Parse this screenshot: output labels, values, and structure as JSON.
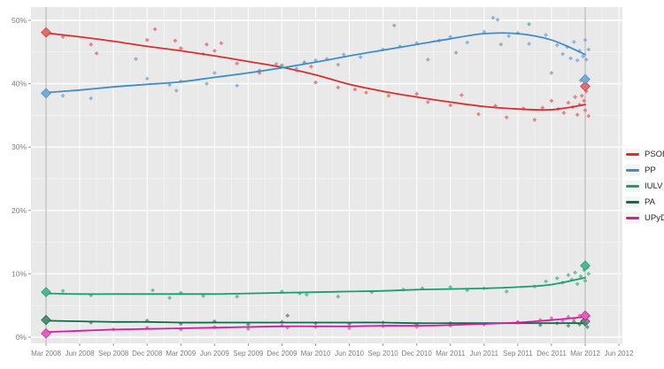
{
  "chart_data": {
    "type": "line",
    "title": "",
    "xlabel": "",
    "ylabel": "",
    "grid": true,
    "legend_position": "right",
    "panel_bg": "#e9e9e9",
    "grid_color": "#ffffff",
    "axis_text_color": "#7d7d7d",
    "election_line_color": "#b4b4b4",
    "y_ticks": [
      0,
      10,
      20,
      30,
      40,
      50
    ],
    "y_tick_labels": [
      "0%",
      "10%",
      "20%",
      "30%",
      "40%",
      "50%"
    ],
    "ylim": [
      -1,
      52
    ],
    "x_tick_months": [
      0,
      3,
      6,
      9,
      12,
      15,
      18,
      21,
      24,
      27,
      30,
      33,
      36,
      39,
      42,
      45,
      48,
      51
    ],
    "x_tick_labels": [
      "Mar 2008",
      "Jun 2008",
      "Sep 2008",
      "Dec 2008",
      "Mar 2009",
      "Jun 2009",
      "Sep 2009",
      "Dec 2009",
      "Mar 2010",
      "Jun 2010",
      "Sep 2010",
      "Dec 2010",
      "Mar 2011",
      "Jun 2011",
      "Sep 2011",
      "Dec 2011",
      "Mar 2012",
      "Jun 2012"
    ],
    "election_months": [
      0,
      48
    ],
    "smooth_x_months": [
      0,
      3,
      6,
      9,
      12,
      15,
      18,
      21,
      24,
      27,
      30,
      33,
      36,
      39,
      42,
      45,
      48
    ],
    "series": [
      {
        "name": "PSOE",
        "color": "#d7302f",
        "point_color": "#e4686c",
        "smooth": [
          48.0,
          47.4,
          46.7,
          45.9,
          45.2,
          44.4,
          43.5,
          42.6,
          41.4,
          39.9,
          38.8,
          37.9,
          37.1,
          36.4,
          36.0,
          35.9,
          36.7
        ],
        "elections": [
          [
            0,
            48.1
          ],
          [
            48,
            39.6
          ]
        ],
        "scatter": [
          [
            1.5,
            47.4
          ],
          [
            4,
            46.2
          ],
          [
            4.5,
            44.8
          ],
          [
            9,
            46.9
          ],
          [
            9.7,
            48.6
          ],
          [
            11.5,
            46.8
          ],
          [
            12,
            45.6
          ],
          [
            14.3,
            46.2
          ],
          [
            15,
            45.2
          ],
          [
            15.6,
            46.4
          ],
          [
            17,
            43.2
          ],
          [
            19,
            41.7
          ],
          [
            21,
            42.9
          ],
          [
            22.3,
            42.1
          ],
          [
            23,
            43.3
          ],
          [
            23.6,
            42.7
          ],
          [
            24,
            40.2
          ],
          [
            26,
            39.4
          ],
          [
            27.5,
            39.1
          ],
          [
            28.5,
            38.6
          ],
          [
            30.5,
            38.1
          ],
          [
            33,
            38.4
          ],
          [
            34,
            37.1
          ],
          [
            36,
            36.6
          ],
          [
            37,
            38.2
          ],
          [
            38.5,
            35.2
          ],
          [
            40,
            36.5
          ],
          [
            41,
            34.7
          ],
          [
            42.5,
            36.1
          ],
          [
            43.5,
            34.3
          ],
          [
            44.2,
            36.2
          ],
          [
            45,
            37.3
          ],
          [
            45.6,
            36.0
          ],
          [
            46.1,
            35.4
          ],
          [
            46.5,
            37.0
          ],
          [
            46.9,
            36.3
          ],
          [
            47.1,
            37.9
          ],
          [
            47.3,
            35.1
          ],
          [
            47.5,
            36.7
          ],
          [
            47.7,
            38.1
          ],
          [
            47.9,
            37.3
          ],
          [
            48,
            35.8
          ],
          [
            48.1,
            38.8
          ],
          [
            48.3,
            34.9
          ]
        ]
      },
      {
        "name": "PP",
        "color": "#3f8ec8",
        "point_color": "#74a9d4",
        "smooth": [
          38.6,
          39.0,
          39.5,
          39.9,
          40.3,
          41.0,
          41.7,
          42.5,
          43.4,
          44.4,
          45.3,
          46.2,
          47.1,
          47.9,
          47.9,
          46.9,
          44.6
        ],
        "elections": [
          [
            0,
            38.5
          ],
          [
            48,
            40.7
          ]
        ],
        "scatter": [
          [
            1.5,
            38.1
          ],
          [
            4,
            37.7
          ],
          [
            9,
            40.8
          ],
          [
            11,
            39.8
          ],
          [
            11.6,
            38.9
          ],
          [
            12,
            40.4
          ],
          [
            14.3,
            40.0
          ],
          [
            15,
            41.7
          ],
          [
            17,
            39.7
          ],
          [
            19,
            42.1
          ],
          [
            21,
            42.9
          ],
          [
            22.3,
            42.4
          ],
          [
            23,
            43.4
          ],
          [
            24,
            43.7
          ],
          [
            25,
            43.9
          ],
          [
            26.5,
            44.6
          ],
          [
            28,
            44.2
          ],
          [
            30,
            45.4
          ],
          [
            31.5,
            45.9
          ],
          [
            33,
            46.4
          ],
          [
            35,
            46.8
          ],
          [
            36,
            47.4
          ],
          [
            37.5,
            46.5
          ],
          [
            39,
            48.2
          ],
          [
            39.8,
            50.4
          ],
          [
            40.2,
            50.1
          ],
          [
            41.2,
            47.5
          ],
          [
            42,
            48.0
          ],
          [
            43,
            46.3
          ],
          [
            44.5,
            47.7
          ],
          [
            45.5,
            46.1
          ],
          [
            46,
            44.7
          ],
          [
            46.4,
            45.8
          ],
          [
            46.7,
            44.0
          ],
          [
            47,
            46.6
          ],
          [
            47.3,
            43.7
          ],
          [
            47.5,
            45.2
          ],
          [
            47.8,
            44.3
          ],
          [
            48,
            46.9
          ],
          [
            48.1,
            43.8
          ],
          [
            48.3,
            45.4
          ]
        ]
      },
      {
        "name": "IULV",
        "color": "#16a06c",
        "point_color": "#4fb38e",
        "smooth": [
          6.9,
          6.8,
          6.8,
          6.8,
          6.8,
          6.8,
          6.9,
          7.0,
          7.1,
          7.2,
          7.3,
          7.5,
          7.6,
          7.7,
          7.9,
          8.3,
          9.4
        ],
        "elections": [
          [
            0,
            7.1
          ],
          [
            48,
            11.3
          ]
        ],
        "scatter": [
          [
            1.5,
            7.3
          ],
          [
            4,
            6.6
          ],
          [
            9.5,
            7.4
          ],
          [
            11,
            6.2
          ],
          [
            12,
            7.0
          ],
          [
            14,
            6.5
          ],
          [
            17,
            6.4
          ],
          [
            21,
            7.2
          ],
          [
            22.6,
            6.9
          ],
          [
            23.2,
            6.7
          ],
          [
            26,
            6.4
          ],
          [
            29,
            7.1
          ],
          [
            31.8,
            7.5
          ],
          [
            33.5,
            7.7
          ],
          [
            36,
            7.9
          ],
          [
            37.5,
            7.4
          ],
          [
            39,
            7.7
          ],
          [
            41,
            7.2
          ],
          [
            43,
            49.4
          ],
          [
            43.5,
            8.0
          ],
          [
            44.5,
            8.8
          ],
          [
            45.5,
            9.3
          ],
          [
            46,
            8.6
          ],
          [
            46.5,
            9.8
          ],
          [
            46.8,
            9.1
          ],
          [
            47.1,
            10.2
          ],
          [
            47.3,
            8.4
          ],
          [
            47.6,
            9.6
          ],
          [
            47.9,
            10.6
          ],
          [
            48,
            8.9
          ],
          [
            48.2,
            11.0
          ],
          [
            48.3,
            10.0
          ]
        ]
      },
      {
        "name": "PA",
        "color": "#0f6b4c",
        "point_color": "#4b8a72",
        "smooth": [
          2.6,
          2.5,
          2.4,
          2.4,
          2.3,
          2.3,
          2.3,
          2.3,
          2.3,
          2.3,
          2.3,
          2.2,
          2.2,
          2.2,
          2.2,
          2.2,
          2.2
        ],
        "elections": [
          [
            0,
            2.7
          ],
          [
            48,
            2.5
          ]
        ],
        "scatter": [
          [
            4,
            2.3
          ],
          [
            9,
            2.6
          ],
          [
            12,
            2.1
          ],
          [
            15,
            2.5
          ],
          [
            18,
            2.0
          ],
          [
            21,
            2.4
          ],
          [
            21.5,
            3.4
          ],
          [
            24,
            2.2
          ],
          [
            27,
            2.1
          ],
          [
            30,
            2.3
          ],
          [
            33,
            2.0
          ],
          [
            36,
            2.2
          ],
          [
            39,
            2.1
          ],
          [
            42,
            2.3
          ],
          [
            44,
            1.9
          ],
          [
            45.5,
            2.2
          ],
          [
            46.5,
            1.8
          ],
          [
            47,
            2.4
          ],
          [
            47.5,
            2.0
          ],
          [
            48,
            2.3
          ],
          [
            48.2,
            1.6
          ]
        ]
      },
      {
        "name": "UPyD",
        "color": "#d41ba2",
        "point_color": "#dd5fb8",
        "smooth": [
          0.8,
          1.0,
          1.2,
          1.3,
          1.4,
          1.5,
          1.6,
          1.7,
          1.7,
          1.7,
          1.8,
          1.8,
          1.9,
          2.1,
          2.3,
          2.7,
          3.2
        ],
        "elections": [
          [
            0,
            0.6
          ],
          [
            48,
            3.4
          ]
        ],
        "scatter": [
          [
            6,
            1.2
          ],
          [
            9,
            1.5
          ],
          [
            12,
            1.2
          ],
          [
            15,
            1.6
          ],
          [
            18,
            1.3
          ],
          [
            21,
            1.8
          ],
          [
            21.5,
            1.5
          ],
          [
            24,
            1.6
          ],
          [
            27,
            1.4
          ],
          [
            30,
            1.7
          ],
          [
            33,
            1.6
          ],
          [
            36,
            1.8
          ],
          [
            39,
            2.0
          ],
          [
            42,
            2.4
          ],
          [
            44,
            2.7
          ],
          [
            45,
            3.0
          ],
          [
            46,
            2.6
          ],
          [
            46.5,
            3.2
          ],
          [
            47,
            2.8
          ],
          [
            47.5,
            3.4
          ],
          [
            48,
            3.0
          ],
          [
            48.2,
            2.5
          ],
          [
            48.3,
            3.3
          ]
        ]
      }
    ],
    "unaffiliated_points": {
      "color": "#8f8f8f",
      "scatter": [
        [
          8,
          43.9
        ],
        [
          14,
          44.7
        ],
        [
          20.5,
          43.1
        ],
        [
          26,
          43.0
        ],
        [
          31,
          49.2
        ],
        [
          34,
          43.8
        ],
        [
          36.5,
          44.9
        ],
        [
          40.5,
          46.2
        ],
        [
          45,
          41.7
        ],
        [
          47.6,
          40.5
        ]
      ]
    }
  }
}
